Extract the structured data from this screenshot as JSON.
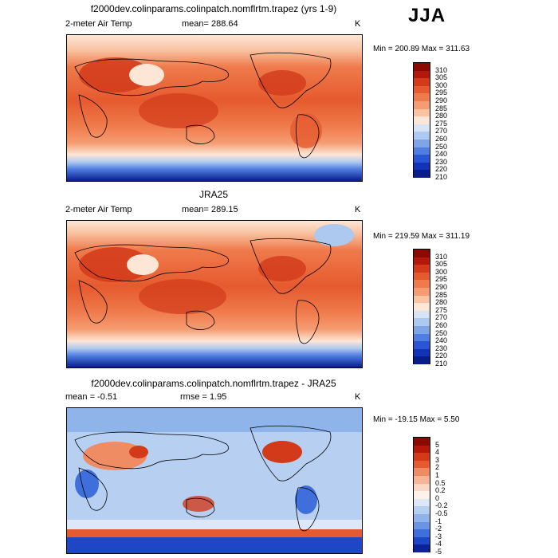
{
  "season": "JJA",
  "panels": [
    {
      "title": "f2000dev.colinparams.colinpatch.nomflrtm.trapez (yrs 1-9)",
      "variable": "2-meter Air Temp",
      "stat_text": "mean=  288.64",
      "units": "K",
      "minmax": "Min = 200.89 Max = 311.63",
      "levels": [
        "310",
        "305",
        "300",
        "295",
        "290",
        "285",
        "280",
        "275",
        "270",
        "260",
        "250",
        "240",
        "230",
        "220",
        "210"
      ],
      "colors": [
        "#8a0a00",
        "#b3180a",
        "#d23a1a",
        "#e55a2e",
        "#ef7a4b",
        "#f59c72",
        "#f9c4a2",
        "#fde6d6",
        "#d6e4f6",
        "#aec9ef",
        "#7ea6e6",
        "#4f7de0",
        "#2a56d6",
        "#1232b8",
        "#081c8a"
      ]
    },
    {
      "title": "JRA25",
      "variable": "2-meter Air Temp",
      "stat_text": "mean=  289.15",
      "units": "K",
      "minmax": "Min = 219.59 Max = 311.19",
      "levels": [
        "310",
        "305",
        "300",
        "295",
        "290",
        "285",
        "280",
        "275",
        "270",
        "260",
        "250",
        "240",
        "230",
        "220",
        "210"
      ],
      "colors": [
        "#8a0a00",
        "#b3180a",
        "#d23a1a",
        "#e55a2e",
        "#ef7a4b",
        "#f59c72",
        "#f9c4a2",
        "#fde6d6",
        "#d6e4f6",
        "#aec9ef",
        "#7ea6e6",
        "#4f7de0",
        "#2a56d6",
        "#1232b8",
        "#081c8a"
      ]
    },
    {
      "title": "f2000dev.colinparams.colinpatch.nomflrtm.trapez - JRA25",
      "stat_text": "mean =   -0.51",
      "rmse_text": "rmse =    1.95",
      "units": "K",
      "minmax": "Min = -19.15 Max =    5.50",
      "levels": [
        "5",
        "4",
        "3",
        "2",
        "1",
        "0.5",
        "0.2",
        "0",
        "-0.2",
        "-0.5",
        "-1",
        "-2",
        "-3",
        "-4",
        "-5"
      ],
      "colors": [
        "#8a0a00",
        "#b3180a",
        "#d23a1a",
        "#e55a2e",
        "#f08c64",
        "#f7b596",
        "#fbd8c6",
        "#fdf2ea",
        "#dce8f7",
        "#b7d0f2",
        "#8fb4ea",
        "#6a95e3",
        "#3f6fdb",
        "#1d47c6",
        "#0a2497"
      ]
    }
  ]
}
